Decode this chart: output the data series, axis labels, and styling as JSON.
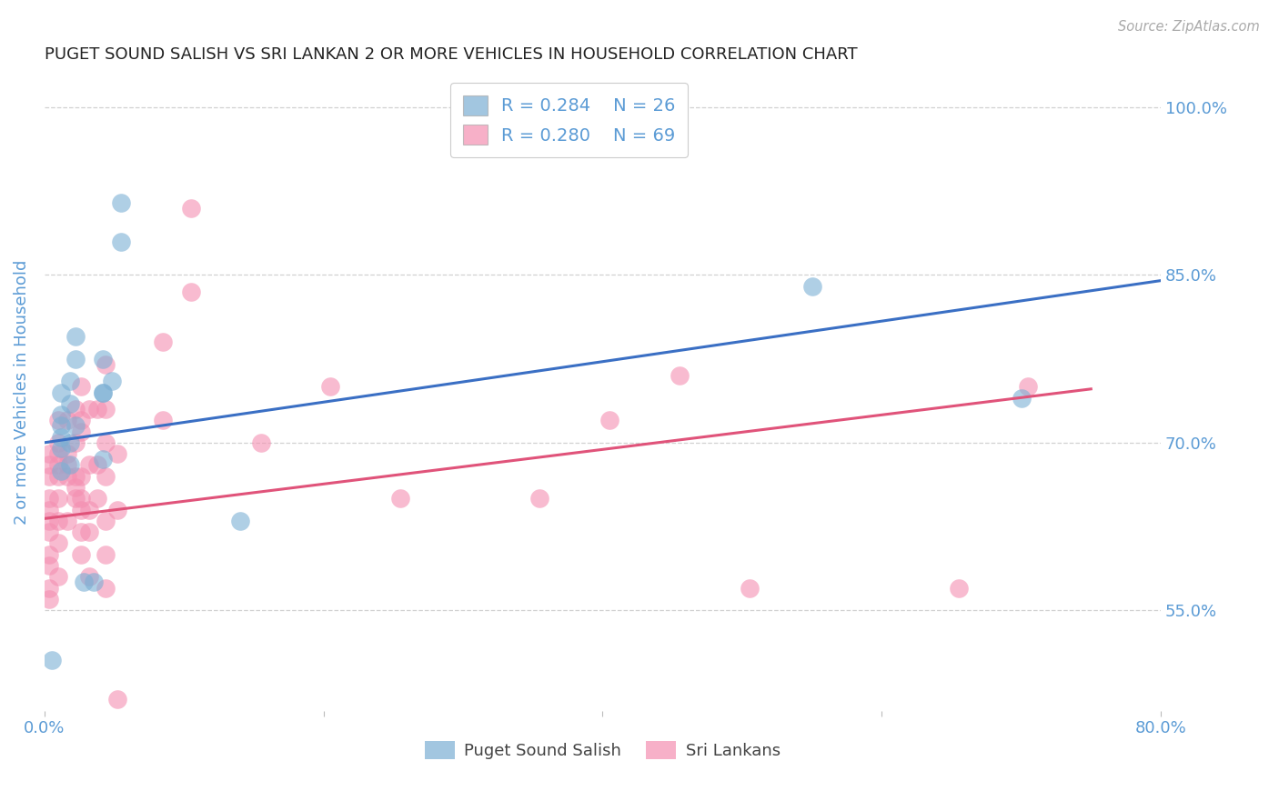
{
  "title": "PUGET SOUND SALISH VS SRI LANKAN 2 OR MORE VEHICLES IN HOUSEHOLD CORRELATION CHART",
  "source": "Source: ZipAtlas.com",
  "ylabel": "2 or more Vehicles in Household",
  "legend_label1": "Puget Sound Salish",
  "legend_label2": "Sri Lankans",
  "r1": "0.284",
  "n1": "26",
  "r2": "0.280",
  "n2": "69",
  "xlim": [
    0.0,
    0.8
  ],
  "ylim": [
    0.46,
    1.03
  ],
  "yticks": [
    0.55,
    0.7,
    0.85,
    1.0
  ],
  "ytick_labels": [
    "55.0%",
    "70.0%",
    "85.0%",
    "100.0%"
  ],
  "xticks": [
    0.0,
    0.2,
    0.4,
    0.6,
    0.8
  ],
  "xtick_labels": [
    "0.0%",
    "",
    "",
    "",
    "80.0%"
  ],
  "background_color": "#ffffff",
  "grid_color": "#cccccc",
  "blue_color": "#7bafd4",
  "pink_color": "#f48fb1",
  "blue_line_color": "#3a6fc4",
  "pink_line_color": "#e0537a",
  "title_color": "#222222",
  "axis_label_color": "#5b9bd5",
  "blue_points": [
    [
      0.005,
      0.505
    ],
    [
      0.012,
      0.695
    ],
    [
      0.012,
      0.725
    ],
    [
      0.012,
      0.745
    ],
    [
      0.012,
      0.705
    ],
    [
      0.012,
      0.675
    ],
    [
      0.012,
      0.715
    ],
    [
      0.018,
      0.735
    ],
    [
      0.018,
      0.7
    ],
    [
      0.018,
      0.755
    ],
    [
      0.018,
      0.68
    ],
    [
      0.022,
      0.715
    ],
    [
      0.022,
      0.795
    ],
    [
      0.022,
      0.775
    ],
    [
      0.028,
      0.575
    ],
    [
      0.035,
      0.575
    ],
    [
      0.042,
      0.745
    ],
    [
      0.042,
      0.745
    ],
    [
      0.042,
      0.685
    ],
    [
      0.042,
      0.775
    ],
    [
      0.048,
      0.755
    ],
    [
      0.055,
      0.88
    ],
    [
      0.055,
      0.915
    ],
    [
      0.55,
      0.84
    ],
    [
      0.7,
      0.74
    ],
    [
      0.14,
      0.63
    ]
  ],
  "pink_points": [
    [
      0.003,
      0.57
    ],
    [
      0.003,
      0.6
    ],
    [
      0.003,
      0.62
    ],
    [
      0.003,
      0.64
    ],
    [
      0.003,
      0.65
    ],
    [
      0.003,
      0.67
    ],
    [
      0.003,
      0.68
    ],
    [
      0.003,
      0.69
    ],
    [
      0.003,
      0.63
    ],
    [
      0.003,
      0.59
    ],
    [
      0.003,
      0.56
    ],
    [
      0.01,
      0.65
    ],
    [
      0.01,
      0.67
    ],
    [
      0.01,
      0.68
    ],
    [
      0.01,
      0.63
    ],
    [
      0.01,
      0.61
    ],
    [
      0.01,
      0.69
    ],
    [
      0.01,
      0.72
    ],
    [
      0.01,
      0.7
    ],
    [
      0.01,
      0.58
    ],
    [
      0.016,
      0.67
    ],
    [
      0.016,
      0.69
    ],
    [
      0.016,
      0.72
    ],
    [
      0.016,
      0.63
    ],
    [
      0.016,
      0.68
    ],
    [
      0.022,
      0.65
    ],
    [
      0.022,
      0.67
    ],
    [
      0.022,
      0.7
    ],
    [
      0.022,
      0.73
    ],
    [
      0.022,
      0.66
    ],
    [
      0.026,
      0.67
    ],
    [
      0.026,
      0.71
    ],
    [
      0.026,
      0.64
    ],
    [
      0.026,
      0.72
    ],
    [
      0.026,
      0.75
    ],
    [
      0.026,
      0.62
    ],
    [
      0.026,
      0.65
    ],
    [
      0.026,
      0.6
    ],
    [
      0.032,
      0.73
    ],
    [
      0.032,
      0.68
    ],
    [
      0.032,
      0.62
    ],
    [
      0.032,
      0.64
    ],
    [
      0.032,
      0.58
    ],
    [
      0.038,
      0.73
    ],
    [
      0.038,
      0.68
    ],
    [
      0.038,
      0.65
    ],
    [
      0.044,
      0.73
    ],
    [
      0.044,
      0.77
    ],
    [
      0.044,
      0.7
    ],
    [
      0.044,
      0.63
    ],
    [
      0.044,
      0.67
    ],
    [
      0.044,
      0.57
    ],
    [
      0.044,
      0.6
    ],
    [
      0.052,
      0.69
    ],
    [
      0.052,
      0.64
    ],
    [
      0.052,
      0.47
    ],
    [
      0.085,
      0.79
    ],
    [
      0.085,
      0.72
    ],
    [
      0.105,
      0.835
    ],
    [
      0.105,
      0.91
    ],
    [
      0.155,
      0.7
    ],
    [
      0.205,
      0.75
    ],
    [
      0.255,
      0.65
    ],
    [
      0.355,
      0.65
    ],
    [
      0.405,
      0.72
    ],
    [
      0.455,
      0.76
    ],
    [
      0.505,
      0.57
    ],
    [
      0.655,
      0.57
    ],
    [
      0.705,
      0.75
    ]
  ],
  "blue_line": [
    [
      0.0,
      0.7
    ],
    [
      0.8,
      0.845
    ]
  ],
  "pink_line": [
    [
      0.0,
      0.632
    ],
    [
      0.75,
      0.748
    ]
  ]
}
